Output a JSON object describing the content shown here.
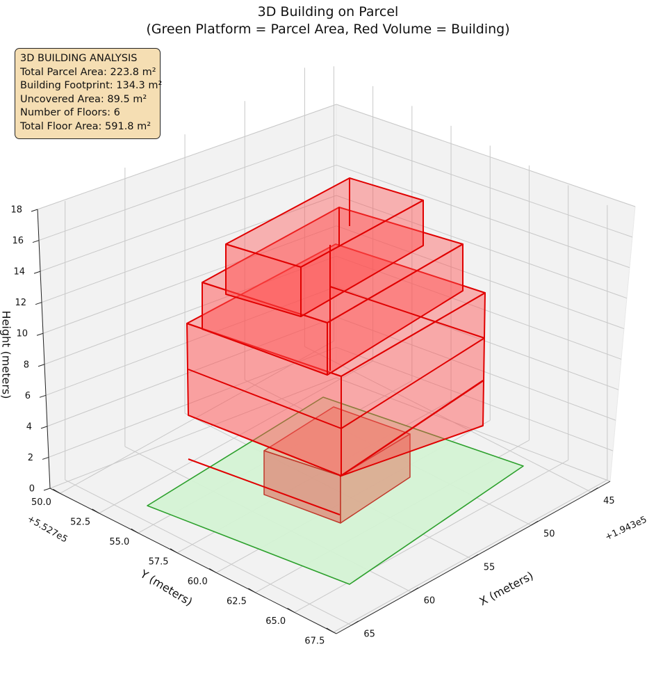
{
  "title_line1": "3D Building on Parcel",
  "title_line2": "(Green Platform = Parcel Area, Red Volume = Building)",
  "info_box": {
    "heading": "3D BUILDING ANALYSIS",
    "parcel_area": "Total Parcel Area: 223.8 m²",
    "footprint": "Building Footprint: 134.3 m²",
    "uncovered": "Uncovered Area: 89.5 m²",
    "floors": "Number of Floors: 6",
    "floor_area": "Total Floor Area: 591.8 m²"
  },
  "chart_data": {
    "type": "3d-box",
    "title": "3D Building on Parcel\n(Green Platform = Parcel Area, Red Volume = Building)",
    "xlabel": "X (meters)",
    "ylabel": "Y (meters)",
    "zlabel": "Height (meters)",
    "x_offset_label": "+1.943e5",
    "y_offset_label": "+5.527e5",
    "x_ticks": [
      "45",
      "50",
      "55",
      "60",
      "65"
    ],
    "y_ticks": [
      "50.0",
      "52.5",
      "55.0",
      "57.5",
      "60.0",
      "62.5",
      "65.0",
      "67.5"
    ],
    "z_ticks": [
      "0",
      "2",
      "4",
      "6",
      "8",
      "10",
      "12",
      "14",
      "16",
      "18"
    ],
    "zlim": [
      0,
      18
    ],
    "grid": true,
    "colors": {
      "parcel_fill": "#d4f2d4",
      "parcel_edge": "#2ca02c",
      "building_fill": "#ff4d4d",
      "building_edge": "#e00000",
      "info_bg": "#f5deb3"
    },
    "parcel": {
      "label": "Parcel Area",
      "area_m2": 223.8
    },
    "building": {
      "label": "Building",
      "footprint_m2": 134.3,
      "floors": 6,
      "total_floor_area_m2": 591.8
    }
  }
}
